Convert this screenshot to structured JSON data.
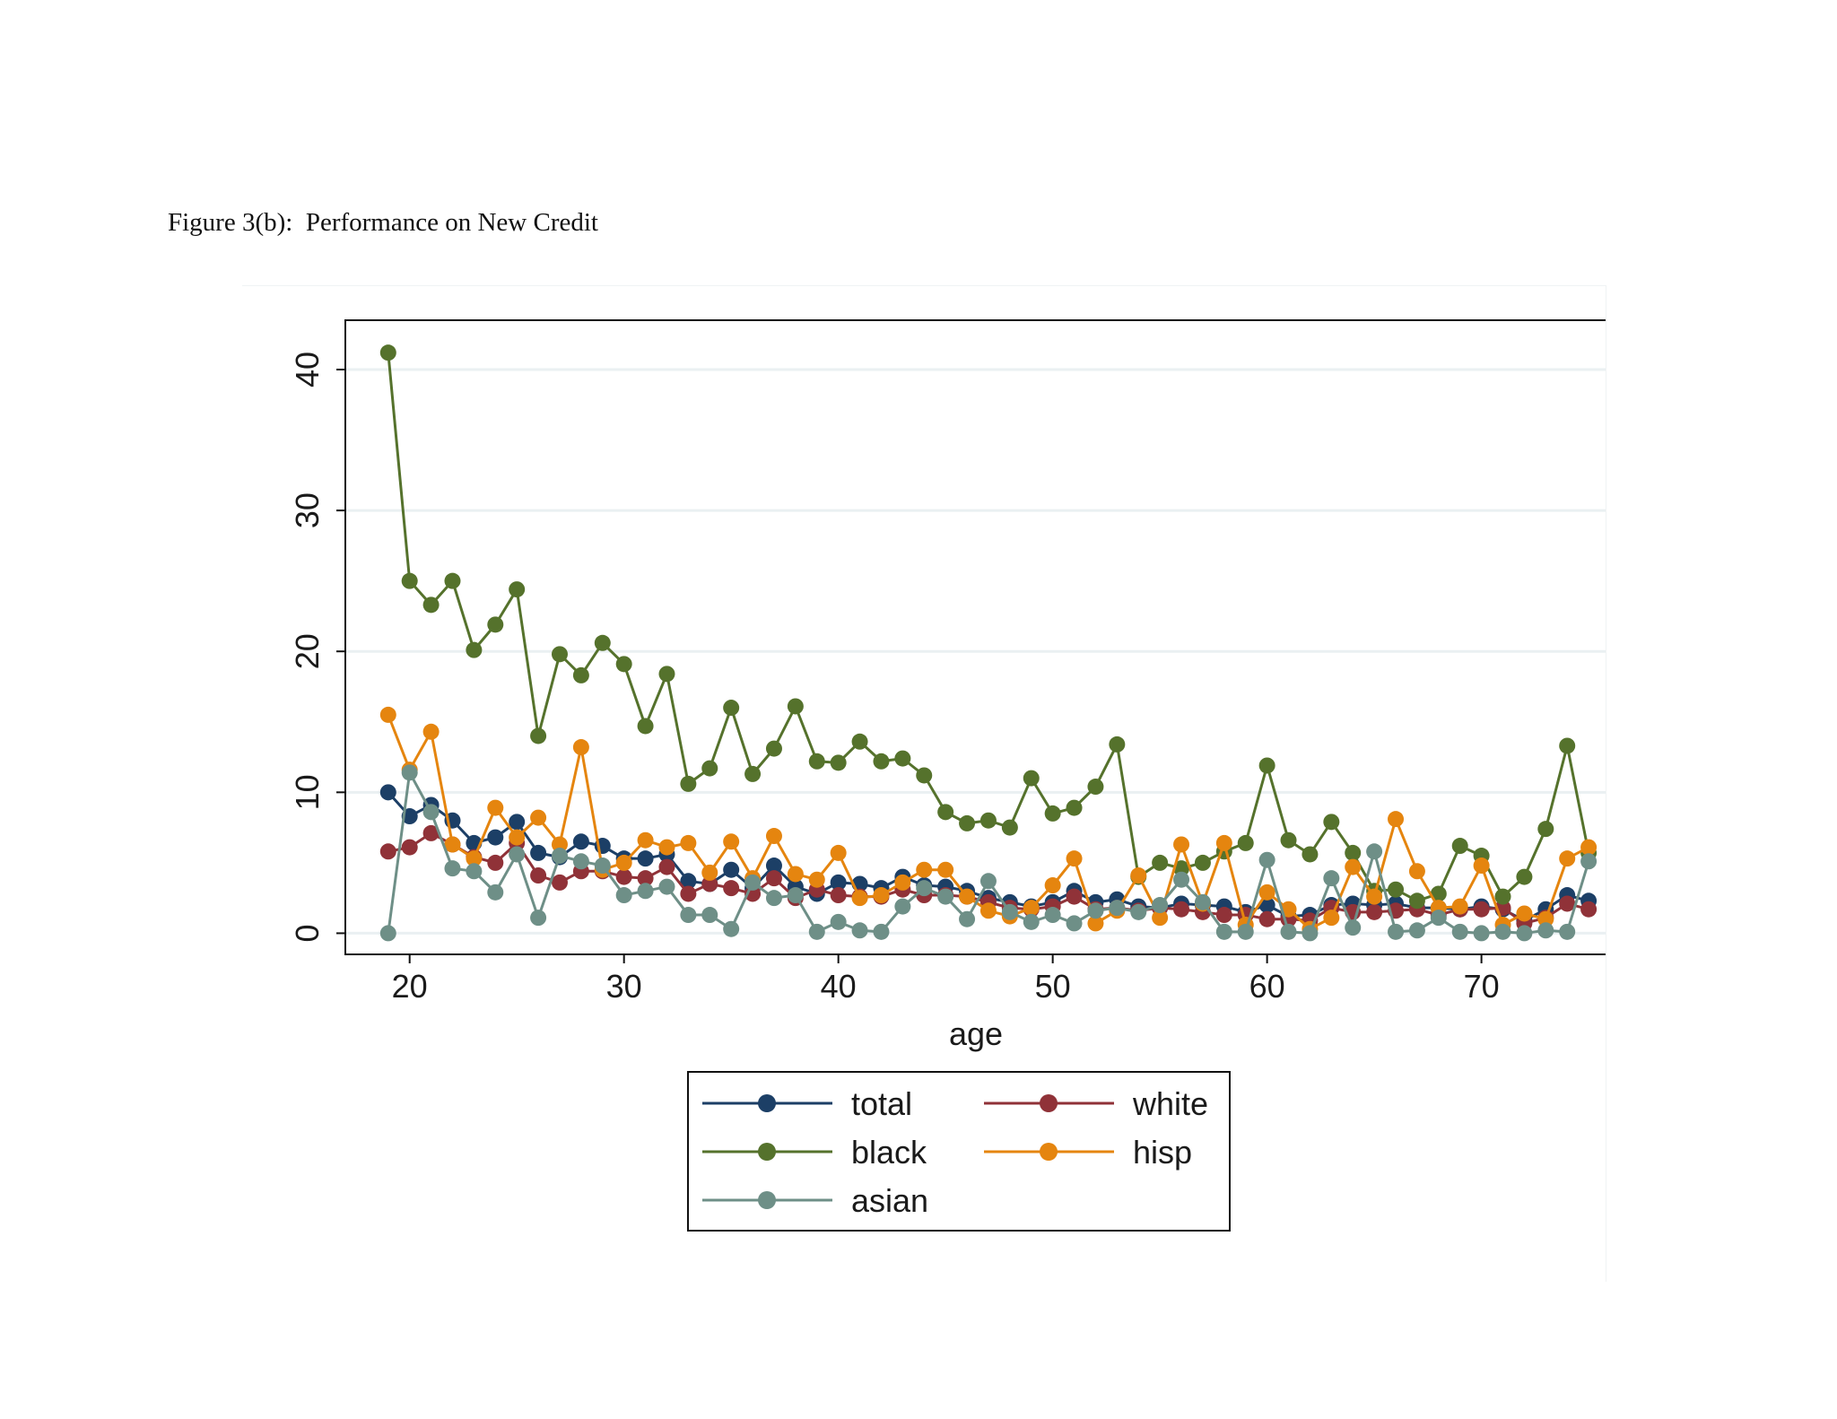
{
  "figure_title": "Figure 3(b):  Performance on New Credit",
  "chart_data": {
    "type": "line",
    "title": "Figure 3(b):  Performance on New Credit",
    "xlabel": "age",
    "ylabel": "",
    "xlim": [
      17,
      76
    ],
    "ylim": [
      -1.5,
      43.5
    ],
    "xticks": [
      20,
      30,
      40,
      50,
      60,
      70
    ],
    "yticks": [
      0,
      10,
      20,
      30,
      40
    ],
    "grid": true,
    "legend_position": "bottom-center",
    "x": [
      19,
      20,
      21,
      22,
      23,
      24,
      25,
      26,
      27,
      28,
      29,
      30,
      31,
      32,
      33,
      34,
      35,
      36,
      37,
      38,
      39,
      40,
      41,
      42,
      43,
      44,
      45,
      46,
      47,
      48,
      49,
      50,
      51,
      52,
      53,
      54,
      55,
      56,
      57,
      58,
      59,
      60,
      61,
      62,
      63,
      64,
      65,
      66,
      67,
      68,
      69,
      70,
      71,
      72,
      73,
      74,
      75
    ],
    "series": [
      {
        "name": "total",
        "color": "#1c3f66",
        "values": [
          10.0,
          8.3,
          9.1,
          8.0,
          6.4,
          6.8,
          7.9,
          5.7,
          5.4,
          6.5,
          6.2,
          5.3,
          5.3,
          5.6,
          3.7,
          3.5,
          4.5,
          3.2,
          4.8,
          3.3,
          2.8,
          3.6,
          3.5,
          3.2,
          4.0,
          3.4,
          3.3,
          3.0,
          2.5,
          2.2,
          1.9,
          2.2,
          3.0,
          2.2,
          2.4,
          1.9,
          1.8,
          2.1,
          2.0,
          1.9,
          1.5,
          2.0,
          1.2,
          1.3,
          2.0,
          2.1,
          2.0,
          2.1,
          1.8,
          1.8,
          1.7,
          1.9,
          1.7,
          0.9,
          1.7,
          2.7,
          2.3
        ]
      },
      {
        "name": "white",
        "color": "#903238",
        "values": [
          5.8,
          6.1,
          7.1,
          6.3,
          5.4,
          5.0,
          6.4,
          4.1,
          3.6,
          4.4,
          4.4,
          4.0,
          3.9,
          4.7,
          2.8,
          3.5,
          3.2,
          2.8,
          3.9,
          2.5,
          3.1,
          2.7,
          2.6,
          2.6,
          3.1,
          2.7,
          2.7,
          2.6,
          2.2,
          1.8,
          1.7,
          1.9,
          2.6,
          1.7,
          1.8,
          1.6,
          1.8,
          1.7,
          1.5,
          1.3,
          1.3,
          1.0,
          1.0,
          0.9,
          1.8,
          1.5,
          1.5,
          1.6,
          1.7,
          1.3,
          1.7,
          1.7,
          1.8,
          0.7,
          1.1,
          2.1,
          1.7
        ]
      },
      {
        "name": "black",
        "color": "#55722c",
        "values": [
          41.2,
          25.0,
          23.3,
          25.0,
          20.1,
          21.9,
          24.4,
          14.0,
          19.8,
          18.3,
          20.6,
          19.1,
          14.7,
          18.4,
          10.6,
          11.7,
          16.0,
          11.3,
          13.1,
          16.1,
          12.2,
          12.1,
          13.6,
          12.2,
          12.4,
          11.2,
          8.6,
          7.8,
          8.0,
          7.5,
          11.0,
          8.5,
          8.9,
          10.4,
          13.4,
          4.0,
          5.0,
          4.6,
          5.0,
          5.8,
          6.4,
          11.9,
          6.6,
          5.6,
          7.9,
          5.7,
          3.0,
          3.1,
          2.3,
          2.8,
          6.2,
          5.5,
          2.6,
          4.0,
          7.4,
          13.3,
          5.7
        ]
      },
      {
        "name": "hisp",
        "color": "#e5850f",
        "values": [
          15.5,
          11.6,
          14.3,
          6.3,
          5.3,
          8.9,
          6.8,
          8.2,
          6.3,
          13.2,
          4.5,
          5.0,
          6.6,
          6.1,
          6.4,
          4.3,
          6.5,
          3.9,
          6.9,
          4.2,
          3.8,
          5.7,
          2.5,
          2.7,
          3.6,
          4.5,
          4.5,
          2.6,
          1.6,
          1.2,
          1.8,
          3.4,
          5.3,
          0.7,
          1.6,
          4.1,
          1.1,
          6.3,
          2.1,
          6.4,
          0.6,
          2.9,
          1.7,
          0.3,
          1.1,
          4.7,
          2.6,
          8.1,
          4.4,
          1.8,
          1.9,
          4.8,
          0.6,
          1.4,
          1.0,
          5.3,
          6.1
        ]
      },
      {
        "name": "asian",
        "color": "#6e8f87",
        "values": [
          0.0,
          11.4,
          8.6,
          4.6,
          4.4,
          2.9,
          5.6,
          1.1,
          5.5,
          5.1,
          4.8,
          2.7,
          3.0,
          3.3,
          1.3,
          1.3,
          0.3,
          3.6,
          2.5,
          2.7,
          0.1,
          0.8,
          0.2,
          0.1,
          1.9,
          3.2,
          2.6,
          1.0,
          3.7,
          1.5,
          0.8,
          1.3,
          0.7,
          1.6,
          1.8,
          1.5,
          2.0,
          3.8,
          2.2,
          0.1,
          0.1,
          5.2,
          0.1,
          0.0,
          3.9,
          0.4,
          5.8,
          0.1,
          0.2,
          1.1,
          0.1,
          0.0,
          0.1,
          0.0,
          0.2,
          0.1,
          5.1
        ]
      }
    ],
    "legend": {
      "columns": [
        [
          "total",
          "black",
          "asian"
        ],
        [
          "white",
          "hisp"
        ]
      ]
    }
  }
}
